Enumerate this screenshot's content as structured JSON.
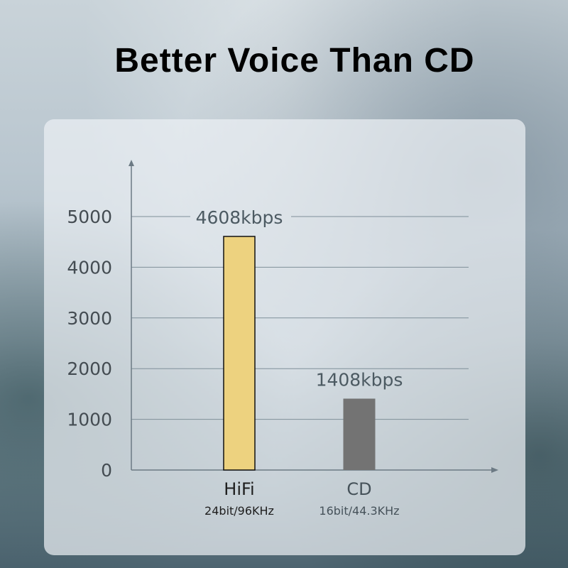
{
  "title": "Better Voice Than CD",
  "chart_data": {
    "type": "bar",
    "title": "Better Voice Than CD",
    "categories": [
      "HiFi",
      "CD"
    ],
    "subcategories": [
      "24bit/96KHz",
      "16bit/44.3KHz"
    ],
    "values": [
      4608,
      1408
    ],
    "data_labels": [
      "4608kbps",
      "1408kbps"
    ],
    "colors": [
      "#edd27f",
      "#737373"
    ],
    "yticks": [
      0,
      1000,
      2000,
      3000,
      4000,
      5000
    ],
    "ytick_labels": [
      "0",
      "1000",
      "2000",
      "3000",
      "4000",
      "5000"
    ],
    "ylim": [
      0,
      5000
    ],
    "grid": true
  }
}
